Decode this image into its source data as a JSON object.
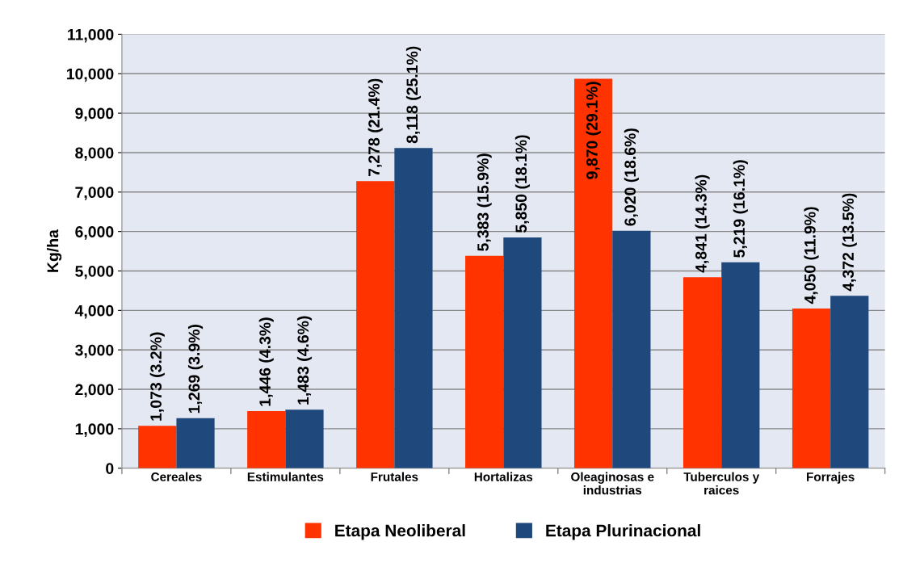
{
  "chart_data": {
    "type": "bar",
    "ylabel": "Kg/ha",
    "categories": [
      "Cereales",
      "Estimulantes",
      "Frutales",
      "Hortalizas",
      "Oleaginosas e\nindustrias",
      "Tuberculos y\nraices",
      "Forrajes"
    ],
    "series": [
      {
        "name": "Etapa Neoliberal",
        "color": "#ff3300",
        "values": [
          1073,
          1446,
          7278,
          5383,
          9870,
          4841,
          4050
        ],
        "value_labels": [
          "1,073 (3.2%)",
          "1,446 (4.3%)",
          "7,278 (21.4%)",
          "5,383 (15.9%)",
          "9,870 (29.1%)",
          "4,841 (14.3%)",
          "4,050 (11.9%)"
        ]
      },
      {
        "name": "Etapa Plurinacional",
        "color": "#1f497d",
        "values": [
          1269,
          1483,
          8118,
          5850,
          6020,
          5219,
          4372
        ],
        "value_labels": [
          "1,269 (3.9%)",
          "1,483 (4.6%)",
          "8,118 (25.1%)",
          "5,850 (18.1%)",
          "6,020 (18.6%)",
          "5,219 (16.1%)",
          "4,372 (13.5%)"
        ]
      }
    ],
    "ylim": [
      0,
      11000
    ],
    "yticks": [
      {
        "value": 0,
        "label": "0"
      },
      {
        "value": 1000,
        "label": "1,000"
      },
      {
        "value": 2000,
        "label": "2,000"
      },
      {
        "value": 3000,
        "label": "3,000"
      },
      {
        "value": 4000,
        "label": "4,000"
      },
      {
        "value": 5000,
        "label": "5,000"
      },
      {
        "value": 6000,
        "label": "6,000"
      },
      {
        "value": 7000,
        "label": "7,000"
      },
      {
        "value": 8000,
        "label": "8,000"
      },
      {
        "value": 9000,
        "label": "9,000"
      },
      {
        "value": 10000,
        "label": "10,000"
      },
      {
        "value": 11000,
        "label": "11,000"
      }
    ],
    "grid": "y",
    "legend": "bottom"
  }
}
